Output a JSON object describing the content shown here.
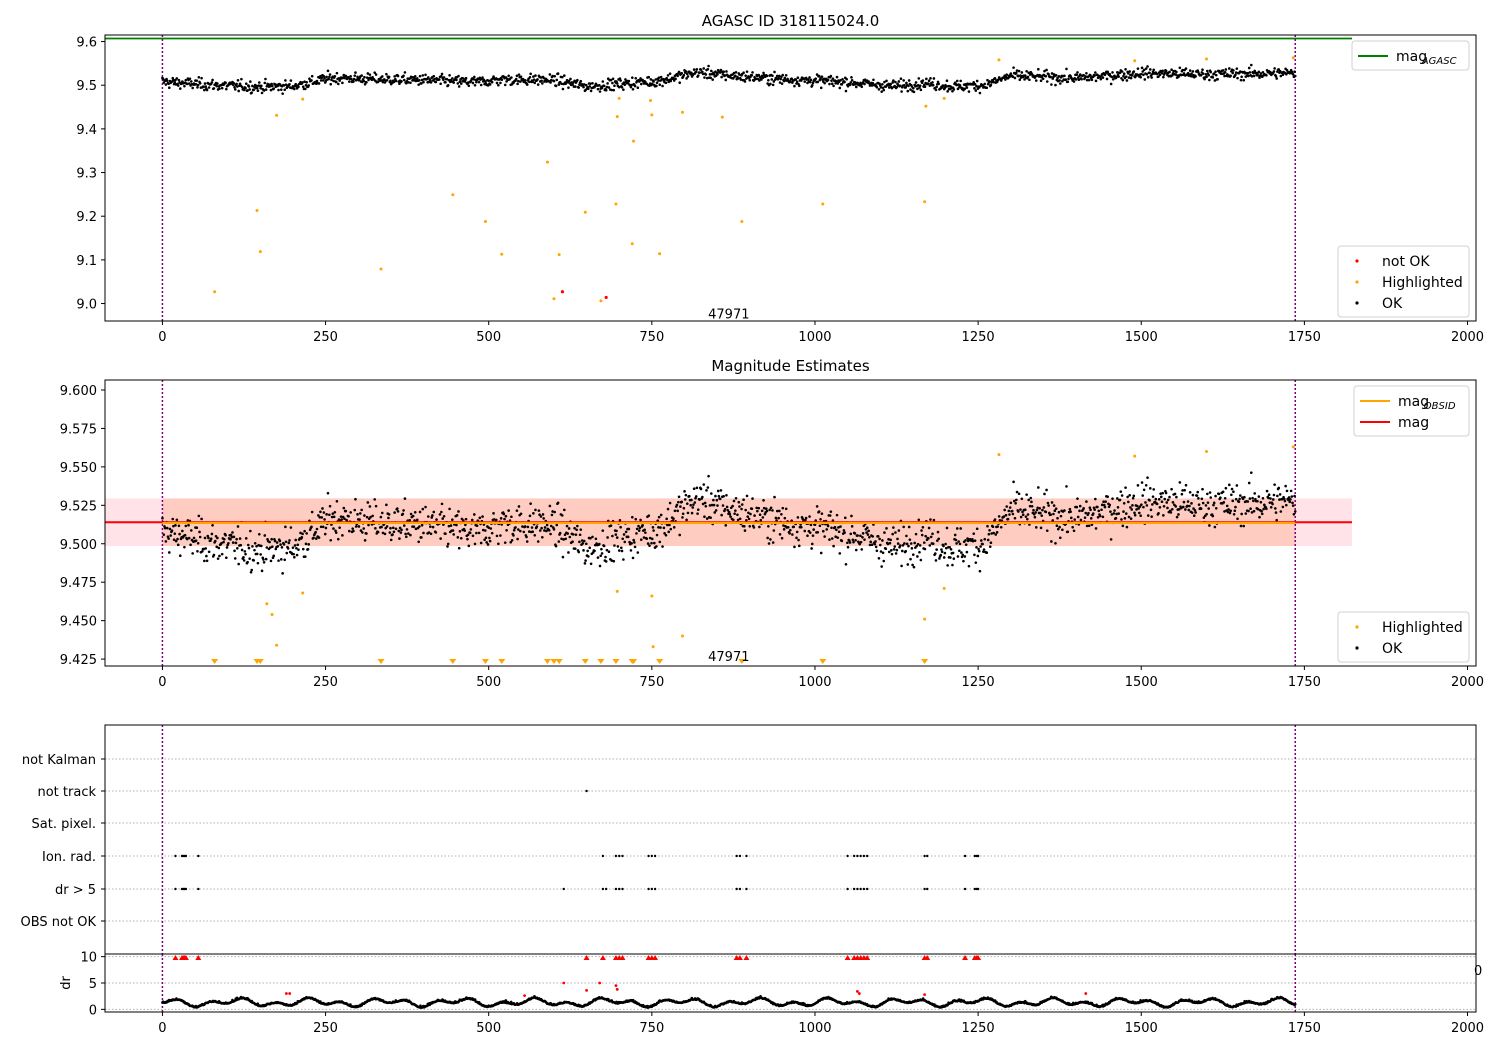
{
  "chart_data": [
    {
      "type": "scatter",
      "title": "AGASC ID 318115024.0",
      "xlim": [
        -88,
        2013
      ],
      "ylim": [
        8.96,
        9.615
      ],
      "xticks": [
        0,
        250,
        500,
        750,
        1000,
        1250,
        1500,
        1750,
        2000
      ],
      "yticks": [
        9.0,
        9.1,
        9.2,
        9.3,
        9.4,
        9.5,
        9.6
      ],
      "ytick_labels": [
        "9.0",
        "9.1",
        "9.2",
        "9.3",
        "9.4",
        "9.5",
        "9.6"
      ],
      "vlines": [
        0,
        1736
      ],
      "vline_color": "#800080",
      "annotation": {
        "text": "47971",
        "x": 868,
        "y": 8.975
      },
      "hline": {
        "name": "mag_AGASC",
        "y": 9.607,
        "x0": -88,
        "x1": 1823,
        "color": "#008000"
      },
      "legend_top": {
        "placement": "top-right",
        "entries": [
          {
            "label": "mag",
            "sub": "AGASC",
            "color": "#008000",
            "kind": "line"
          }
        ]
      },
      "legend_bottom": {
        "placement": "bottom-right",
        "entries": [
          {
            "label": "not OK",
            "color": "#ff0000",
            "kind": "dot"
          },
          {
            "label": "Highlighted",
            "color": "#ffa500",
            "kind": "dot"
          },
          {
            "label": "OK",
            "color": "#000000",
            "kind": "dot"
          }
        ]
      },
      "ok_series": {
        "name": "OK",
        "color": "#000000",
        "x_start": 0,
        "x_end": 1736,
        "n": 1650,
        "trend": [
          [
            0,
            9.508
          ],
          [
            80,
            9.5
          ],
          [
            150,
            9.496
          ],
          [
            200,
            9.498
          ],
          [
            260,
            9.517
          ],
          [
            320,
            9.514
          ],
          [
            400,
            9.512
          ],
          [
            480,
            9.507
          ],
          [
            520,
            9.513
          ],
          [
            600,
            9.512
          ],
          [
            650,
            9.497
          ],
          [
            700,
            9.503
          ],
          [
            760,
            9.51
          ],
          [
            820,
            9.53
          ],
          [
            870,
            9.522
          ],
          [
            950,
            9.514
          ],
          [
            1050,
            9.507
          ],
          [
            1120,
            9.498
          ],
          [
            1170,
            9.505
          ],
          [
            1210,
            9.497
          ],
          [
            1260,
            9.5
          ],
          [
            1300,
            9.522
          ],
          [
            1400,
            9.516
          ],
          [
            1500,
            9.528
          ],
          [
            1600,
            9.525
          ],
          [
            1736,
            9.528
          ]
        ],
        "noise": 0.011
      },
      "highlighted_series": {
        "name": "Highlighted",
        "color": "#ffa500",
        "x": [
          80,
          145,
          150,
          175,
          215,
          335,
          445,
          495,
          520,
          590,
          600,
          608,
          648,
          672,
          695,
          697,
          700,
          720,
          722,
          748,
          750,
          762,
          797,
          858,
          888,
          1012,
          1168,
          1170,
          1198,
          1282,
          1490,
          1600,
          1733
        ],
        "y": [
          9.027,
          9.213,
          9.119,
          9.431,
          9.468,
          9.079,
          9.249,
          9.188,
          9.113,
          9.324,
          9.011,
          9.112,
          9.209,
          9.006,
          9.228,
          9.428,
          9.47,
          9.137,
          9.372,
          9.465,
          9.432,
          9.114,
          9.438,
          9.427,
          9.188,
          9.228,
          9.233,
          9.452,
          9.47,
          9.558,
          9.556,
          9.56,
          9.563
        ]
      },
      "notok_series": {
        "name": "not OK",
        "color": "#ff0000",
        "x": [
          613,
          680
        ],
        "y": [
          9.027,
          9.014
        ]
      }
    },
    {
      "type": "scatter",
      "title": "Magnitude Estimates",
      "xlim": [
        -88,
        2013
      ],
      "ylim": [
        9.4205,
        9.6065
      ],
      "xticks": [
        0,
        250,
        500,
        750,
        1000,
        1250,
        1500,
        1750,
        2000
      ],
      "yticks": [
        9.425,
        9.45,
        9.475,
        9.5,
        9.525,
        9.55,
        9.575,
        9.6
      ],
      "ytick_labels": [
        "9.425",
        "9.450",
        "9.475",
        "9.500",
        "9.525",
        "9.550",
        "9.575",
        "9.600"
      ],
      "vlines": [
        0,
        1736
      ],
      "vline_color": "#800080",
      "annotation": {
        "text": "47971",
        "x": 868,
        "y": 9.4265
      },
      "band_outer": {
        "x0": -88,
        "x1": 1823,
        "y0": 9.4985,
        "y1": 9.5295,
        "color": "#ffc0cb"
      },
      "band_inner": {
        "x0": 0,
        "x1": 1736,
        "y0": 9.4985,
        "y1": 9.5295,
        "color": "#ffa07a"
      },
      "mag_line": {
        "name": "mag",
        "y": 9.514,
        "x0": -88,
        "x1": 1823,
        "color": "#ff0000"
      },
      "mag_obsid_line": {
        "name": "mag_OBSID",
        "y": 9.5135,
        "x0": 0,
        "x1": 1736,
        "color": "#ffa500"
      },
      "legend_top": {
        "placement": "top-right",
        "entries": [
          {
            "label": "mag",
            "sub": "OBSID",
            "color": "#ffa500",
            "kind": "line"
          },
          {
            "label": "mag",
            "sub": "",
            "color": "#ff0000",
            "kind": "line"
          }
        ]
      },
      "legend_bottom": {
        "placement": "bottom-right",
        "entries": [
          {
            "label": "Highlighted",
            "color": "#ffa500",
            "kind": "dot"
          },
          {
            "label": "OK",
            "color": "#000000",
            "kind": "dot"
          }
        ]
      },
      "highlighted_series": {
        "name": "Highlighted",
        "color": "#ffa500",
        "x": [
          160,
          168,
          175,
          215,
          697,
          750,
          752,
          797,
          1168,
          1198,
          1282,
          1490,
          1600,
          1733
        ],
        "y": [
          9.461,
          9.454,
          9.434,
          9.468,
          9.469,
          9.466,
          9.433,
          9.44,
          9.451,
          9.471,
          9.558,
          9.557,
          9.56,
          9.563
        ]
      },
      "clipped_markers": {
        "color": "#ffa500",
        "x": [
          80,
          145,
          150,
          335,
          445,
          495,
          520,
          590,
          600,
          608,
          648,
          672,
          695,
          720,
          722,
          762,
          888,
          1012,
          1168
        ]
      }
    },
    {
      "type": "scatter",
      "title": "",
      "xlim": [
        -88,
        2013
      ],
      "categories": [
        "not Kalman",
        "not track",
        "Sat. pixel.",
        "Ion. rad.",
        "dr > 5",
        "OBS not OK"
      ],
      "vlines": [
        0,
        1736
      ],
      "vline_color": "#800080",
      "flags": {
        "not track": [
          650
        ],
        "Ion. rad.": [
          20,
          30,
          32,
          34,
          36,
          55,
          675,
          695,
          700,
          705,
          745,
          750,
          755,
          880,
          885,
          895,
          1050,
          1060,
          1065,
          1070,
          1075,
          1080,
          1168,
          1172,
          1230,
          1245,
          1248,
          1250
        ],
        "dr > 5": [
          20,
          30,
          32,
          34,
          36,
          55,
          615,
          675,
          680,
          695,
          700,
          705,
          745,
          750,
          755,
          880,
          885,
          895,
          1050,
          1060,
          1065,
          1070,
          1075,
          1080,
          1168,
          1172,
          1230,
          1245,
          1248,
          1250
        ]
      }
    },
    {
      "type": "scatter",
      "title": "",
      "ylabel": "dr",
      "xlim": [
        -88,
        2013
      ],
      "ylim": [
        -0.5,
        10.5
      ],
      "xticks": [
        0,
        250,
        500,
        750,
        1000,
        1250,
        1500,
        1750,
        2000
      ],
      "yticks": [
        0,
        5,
        10
      ],
      "ytick_labels": [
        "0",
        "5",
        "10"
      ],
      "vlines": [
        0,
        1736
      ],
      "vline_color": "#800080",
      "clipped_markers": {
        "color": "#ff0000",
        "x": [
          20,
          30,
          32,
          34,
          36,
          55,
          650,
          675,
          695,
          700,
          705,
          745,
          750,
          755,
          880,
          885,
          895,
          1050,
          1060,
          1065,
          1070,
          1075,
          1080,
          1168,
          1172,
          1230,
          1245,
          1248,
          1250
        ]
      },
      "red_points": {
        "color": "#ff0000",
        "x": [
          190,
          195,
          555,
          615,
          650,
          670,
          695,
          697,
          1065,
          1068,
          1168,
          1415
        ],
        "y": [
          3.0,
          3.0,
          2.6,
          5.0,
          3.6,
          5.0,
          4.5,
          3.8,
          3.4,
          3.0,
          2.8,
          3.0
        ]
      },
      "ok_series": {
        "name": "OK",
        "color": "#000000",
        "x_start": 0,
        "x_end": 1736,
        "n": 1700
      }
    }
  ],
  "ticks_x": [
    "0",
    "250",
    "500",
    "750",
    "1000",
    "1250",
    "1500",
    "1750",
    "2000"
  ],
  "stray_label": "0"
}
